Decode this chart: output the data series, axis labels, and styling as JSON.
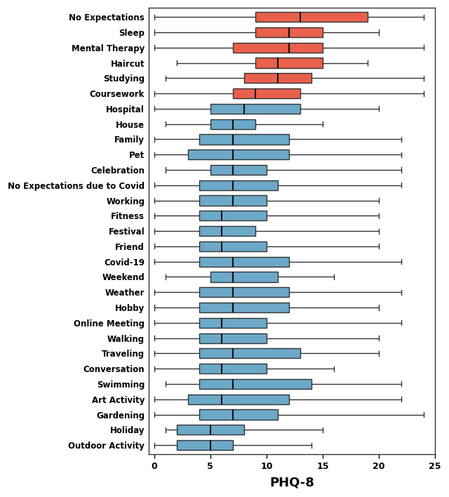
{
  "categories": [
    "No Expectations",
    "Sleep",
    "Mental Therapy",
    "Haircut",
    "Studying",
    "Coursework",
    "Hospital",
    "House",
    "Family",
    "Pet",
    "Celebration",
    "No Expectations due to Covid",
    "Working",
    "Fitness",
    "Festival",
    "Friend",
    "Covid-19",
    "Weekend",
    "Weather",
    "Hobby",
    "Online Meeting",
    "Walking",
    "Traveling",
    "Conversation",
    "Swimming",
    "Art Activity",
    "Gardening",
    "Holiday",
    "Outdoor Activity"
  ],
  "box_data": [
    {
      "whislo": 0,
      "q1": 9,
      "med": 13,
      "q3": 19,
      "whishi": 24
    },
    {
      "whislo": 0,
      "q1": 9,
      "med": 12,
      "q3": 15,
      "whishi": 20
    },
    {
      "whislo": 0,
      "q1": 7,
      "med": 12,
      "q3": 15,
      "whishi": 24
    },
    {
      "whislo": 2,
      "q1": 9,
      "med": 11,
      "q3": 15,
      "whishi": 19
    },
    {
      "whislo": 1,
      "q1": 8,
      "med": 11,
      "q3": 14,
      "whishi": 24
    },
    {
      "whislo": 0,
      "q1": 7,
      "med": 9,
      "q3": 13,
      "whishi": 24
    },
    {
      "whislo": 0,
      "q1": 5,
      "med": 8,
      "q3": 13,
      "whishi": 20
    },
    {
      "whislo": 1,
      "q1": 5,
      "med": 7,
      "q3": 9,
      "whishi": 15
    },
    {
      "whislo": 0,
      "q1": 4,
      "med": 7,
      "q3": 12,
      "whishi": 22
    },
    {
      "whislo": 0,
      "q1": 3,
      "med": 7,
      "q3": 12,
      "whishi": 22
    },
    {
      "whislo": 1,
      "q1": 5,
      "med": 7,
      "q3": 10,
      "whishi": 22
    },
    {
      "whislo": 0,
      "q1": 4,
      "med": 7,
      "q3": 11,
      "whishi": 22
    },
    {
      "whislo": 0,
      "q1": 4,
      "med": 7,
      "q3": 10,
      "whishi": 20
    },
    {
      "whislo": 0,
      "q1": 4,
      "med": 6,
      "q3": 10,
      "whishi": 20
    },
    {
      "whislo": 0,
      "q1": 4,
      "med": 6,
      "q3": 9,
      "whishi": 20
    },
    {
      "whislo": 0,
      "q1": 4,
      "med": 6,
      "q3": 10,
      "whishi": 20
    },
    {
      "whislo": 0,
      "q1": 4,
      "med": 7,
      "q3": 12,
      "whishi": 22
    },
    {
      "whislo": 1,
      "q1": 5,
      "med": 7,
      "q3": 11,
      "whishi": 16
    },
    {
      "whislo": 0,
      "q1": 4,
      "med": 7,
      "q3": 12,
      "whishi": 22
    },
    {
      "whislo": 0,
      "q1": 4,
      "med": 7,
      "q3": 12,
      "whishi": 20
    },
    {
      "whislo": 0,
      "q1": 4,
      "med": 6,
      "q3": 10,
      "whishi": 22
    },
    {
      "whislo": 0,
      "q1": 4,
      "med": 6,
      "q3": 10,
      "whishi": 20
    },
    {
      "whislo": 0,
      "q1": 4,
      "med": 7,
      "q3": 13,
      "whishi": 20
    },
    {
      "whislo": 0,
      "q1": 4,
      "med": 6,
      "q3": 10,
      "whishi": 16
    },
    {
      "whislo": 1,
      "q1": 4,
      "med": 7,
      "q3": 14,
      "whishi": 22
    },
    {
      "whislo": 0,
      "q1": 3,
      "med": 6,
      "q3": 12,
      "whishi": 22
    },
    {
      "whislo": 0,
      "q1": 4,
      "med": 7,
      "q3": 11,
      "whishi": 24
    },
    {
      "whislo": 1,
      "q1": 2,
      "med": 5,
      "q3": 8,
      "whishi": 15
    },
    {
      "whislo": 0,
      "q1": 2,
      "med": 5,
      "q3": 7,
      "whishi": 14
    }
  ],
  "colors_orange": [
    "No Expectations",
    "Sleep",
    "Mental Therapy",
    "Haircut",
    "Studying",
    "Coursework"
  ],
  "color_orange": "#E8604C",
  "color_blue": "#6CA8C8",
  "xlabel": "PHQ-8",
  "xlim": [
    -0.5,
    25
  ],
  "xticks": [
    0,
    5,
    10,
    15,
    20,
    25
  ],
  "background_color": "#ffffff"
}
